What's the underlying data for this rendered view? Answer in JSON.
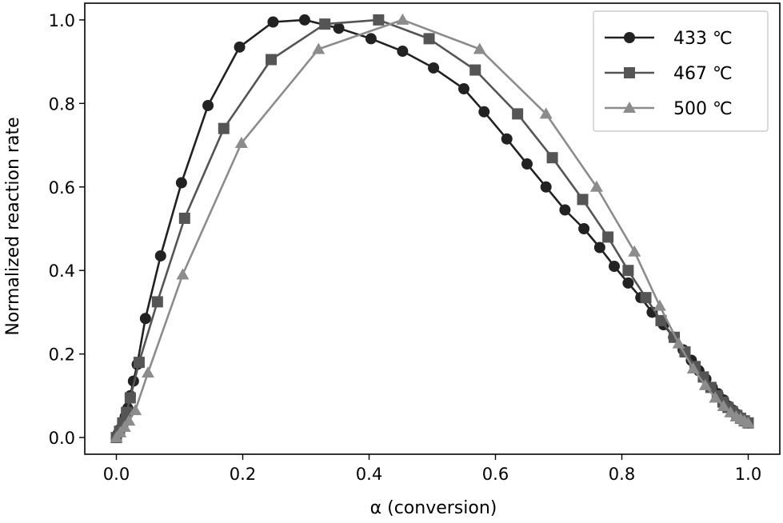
{
  "chart_data": {
    "type": "line",
    "xlabel": "α (conversion)",
    "ylabel": "Normalized reaction rate",
    "xlim": [
      -0.05,
      1.05
    ],
    "ylim": [
      -0.04,
      1.04
    ],
    "xticks": [
      "0.0",
      "0.2",
      "0.4",
      "0.6",
      "0.8",
      "1.0"
    ],
    "yticks": [
      "0.0",
      "0.2",
      "0.4",
      "0.6",
      "0.8",
      "1.0"
    ],
    "grid": false,
    "legend_position": "top-right",
    "series": [
      {
        "name": "433 ℃",
        "color": "#222222",
        "marker": "circle",
        "x": [
          0.0,
          0.003,
          0.006,
          0.01,
          0.014,
          0.018,
          0.022,
          0.027,
          0.033,
          0.046,
          0.07,
          0.103,
          0.145,
          0.195,
          0.248,
          0.298,
          0.352,
          0.403,
          0.453,
          0.502,
          0.55,
          0.582,
          0.618,
          0.65,
          0.68,
          0.71,
          0.74,
          0.765,
          0.788,
          0.81,
          0.83,
          0.848,
          0.866,
          0.882,
          0.897,
          0.91,
          0.922,
          0.933,
          0.943,
          0.952,
          0.961,
          0.969,
          0.976,
          0.983,
          0.989,
          0.994,
          1.0
        ],
        "y": [
          0.0,
          0.01,
          0.02,
          0.035,
          0.05,
          0.07,
          0.1,
          0.135,
          0.175,
          0.285,
          0.435,
          0.61,
          0.795,
          0.935,
          0.995,
          1.0,
          0.98,
          0.955,
          0.925,
          0.885,
          0.835,
          0.78,
          0.715,
          0.655,
          0.6,
          0.545,
          0.5,
          0.455,
          0.41,
          0.37,
          0.335,
          0.3,
          0.27,
          0.24,
          0.21,
          0.185,
          0.16,
          0.14,
          0.12,
          0.105,
          0.09,
          0.075,
          0.065,
          0.055,
          0.047,
          0.04,
          0.035
        ]
      },
      {
        "name": "467 ℃",
        "color": "#555555",
        "marker": "square",
        "x": [
          0.0,
          0.005,
          0.01,
          0.016,
          0.022,
          0.036,
          0.065,
          0.108,
          0.17,
          0.245,
          0.33,
          0.415,
          0.495,
          0.568,
          0.635,
          0.69,
          0.738,
          0.778,
          0.81,
          0.838,
          0.862,
          0.883,
          0.9,
          0.916,
          0.929,
          0.941,
          0.951,
          0.96,
          0.968,
          0.975,
          0.982,
          0.988,
          0.994,
          1.0
        ],
        "y": [
          0.0,
          0.015,
          0.035,
          0.06,
          0.095,
          0.18,
          0.325,
          0.525,
          0.74,
          0.905,
          0.99,
          1.0,
          0.955,
          0.88,
          0.775,
          0.67,
          0.57,
          0.48,
          0.4,
          0.335,
          0.28,
          0.24,
          0.205,
          0.17,
          0.145,
          0.12,
          0.1,
          0.085,
          0.072,
          0.062,
          0.053,
          0.046,
          0.04,
          0.035
        ]
      },
      {
        "name": "500 ℃",
        "color": "#8c8c8c",
        "marker": "triangle",
        "x": [
          0.0,
          0.006,
          0.013,
          0.02,
          0.03,
          0.05,
          0.105,
          0.198,
          0.32,
          0.453,
          0.575,
          0.68,
          0.76,
          0.82,
          0.86,
          0.89,
          0.913,
          0.932,
          0.948,
          0.961,
          0.972,
          0.981,
          0.988,
          0.994,
          1.0
        ],
        "y": [
          0.0,
          0.012,
          0.025,
          0.04,
          0.065,
          0.155,
          0.39,
          0.705,
          0.93,
          1.0,
          0.93,
          0.775,
          0.6,
          0.445,
          0.315,
          0.225,
          0.165,
          0.125,
          0.095,
          0.075,
          0.06,
          0.05,
          0.045,
          0.04,
          0.035
        ]
      }
    ]
  }
}
